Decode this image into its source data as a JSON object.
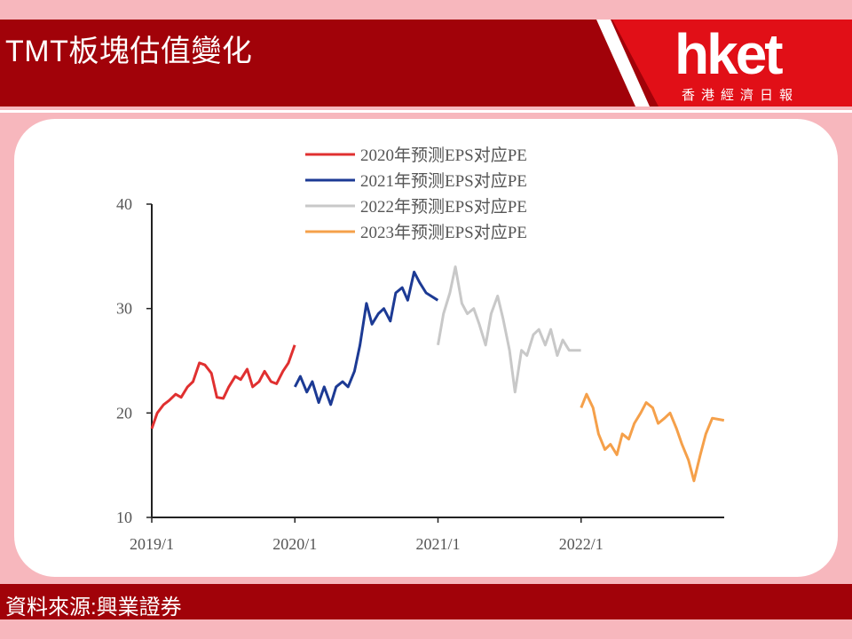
{
  "header": {
    "title": "TMT板塊估值變化",
    "logo": "hket",
    "logo_sub": "香港經濟日報"
  },
  "footer": {
    "source": "資料來源:興業證券"
  },
  "colors": {
    "header_bg": "#a10209",
    "logo_bg": "#e10f17",
    "page_bg": "#f7b7bd"
  },
  "chart_data": {
    "type": "line",
    "title": "",
    "xlabel": "",
    "ylabel": "",
    "xlim": [
      "2019/1",
      "2023/1"
    ],
    "ylim": [
      10,
      40
    ],
    "x_ticks": [
      "2019/1",
      "2020/1",
      "2021/1",
      "2022/1"
    ],
    "y_ticks": [
      10,
      20,
      30,
      40
    ],
    "grid": false,
    "legend_position": "top-center",
    "series": [
      {
        "name": "2020年预测EPS对应PE",
        "color": "#e03030",
        "points": [
          [
            "2019-01",
            18.5
          ],
          [
            "2019-01-15",
            20.0
          ],
          [
            "2019-02",
            20.8
          ],
          [
            "2019-02-15",
            21.2
          ],
          [
            "2019-03",
            21.8
          ],
          [
            "2019-03-15",
            21.5
          ],
          [
            "2019-04",
            22.5
          ],
          [
            "2019-04-15",
            23.0
          ],
          [
            "2019-05",
            24.8
          ],
          [
            "2019-05-15",
            24.6
          ],
          [
            "2019-06",
            23.8
          ],
          [
            "2019-06-15",
            21.5
          ],
          [
            "2019-07",
            21.4
          ],
          [
            "2019-07-15",
            22.5
          ],
          [
            "2019-08",
            23.5
          ],
          [
            "2019-08-15",
            23.2
          ],
          [
            "2019-09",
            24.2
          ],
          [
            "2019-09-15",
            22.5
          ],
          [
            "2019-10",
            23.0
          ],
          [
            "2019-10-15",
            24.0
          ],
          [
            "2019-11",
            23.0
          ],
          [
            "2019-11-15",
            22.8
          ],
          [
            "2019-12",
            24.0
          ],
          [
            "2019-12-15",
            24.8
          ],
          [
            "2019-12-31",
            26.5
          ]
        ]
      },
      {
        "name": "2021年预测EPS对应PE",
        "color": "#1c3a94",
        "points": [
          [
            "2020-01",
            22.5
          ],
          [
            "2020-01-15",
            23.5
          ],
          [
            "2020-02",
            22.0
          ],
          [
            "2020-02-15",
            23.0
          ],
          [
            "2020-03",
            21.0
          ],
          [
            "2020-03-15",
            22.5
          ],
          [
            "2020-04",
            20.8
          ],
          [
            "2020-04-15",
            22.5
          ],
          [
            "2020-05",
            23.0
          ],
          [
            "2020-05-15",
            22.5
          ],
          [
            "2020-06",
            24.0
          ],
          [
            "2020-06-15",
            26.5
          ],
          [
            "2020-07",
            30.5
          ],
          [
            "2020-07-15",
            28.5
          ],
          [
            "2020-08",
            29.5
          ],
          [
            "2020-08-15",
            30.0
          ],
          [
            "2020-09",
            28.8
          ],
          [
            "2020-09-15",
            31.5
          ],
          [
            "2020-10",
            32.0
          ],
          [
            "2020-10-15",
            30.8
          ],
          [
            "2020-11",
            33.5
          ],
          [
            "2020-11-15",
            32.5
          ],
          [
            "2020-12",
            31.5
          ],
          [
            "2020-12-31",
            30.8
          ]
        ]
      },
      {
        "name": "2022年预测EPS对应PE",
        "color": "#c8c8c8",
        "points": [
          [
            "2021-01",
            26.5
          ],
          [
            "2021-01-15",
            29.5
          ],
          [
            "2021-02",
            31.5
          ],
          [
            "2021-02-15",
            34.0
          ],
          [
            "2021-03",
            30.5
          ],
          [
            "2021-03-15",
            29.5
          ],
          [
            "2021-04",
            30.0
          ],
          [
            "2021-04-15",
            28.5
          ],
          [
            "2021-05",
            26.5
          ],
          [
            "2021-05-15",
            29.5
          ],
          [
            "2021-06",
            31.2
          ],
          [
            "2021-06-15",
            29.0
          ],
          [
            "2021-07",
            26.0
          ],
          [
            "2021-07-15",
            22.0
          ],
          [
            "2021-08",
            26.0
          ],
          [
            "2021-08-15",
            25.5
          ],
          [
            "2021-09",
            27.5
          ],
          [
            "2021-09-15",
            28.0
          ],
          [
            "2021-10",
            26.5
          ],
          [
            "2021-10-15",
            28.0
          ],
          [
            "2021-11",
            25.5
          ],
          [
            "2021-11-15",
            27.0
          ],
          [
            "2021-12",
            26.0
          ],
          [
            "2021-12-31",
            26.0
          ]
        ]
      },
      {
        "name": "2023年预测EPS对应PE",
        "color": "#f5a04a",
        "points": [
          [
            "2022-01",
            20.5
          ],
          [
            "2022-01-15",
            21.8
          ],
          [
            "2022-02",
            20.5
          ],
          [
            "2022-02-15",
            18.0
          ],
          [
            "2022-03",
            16.5
          ],
          [
            "2022-03-15",
            17.0
          ],
          [
            "2022-04",
            16.0
          ],
          [
            "2022-04-15",
            18.0
          ],
          [
            "2022-05",
            17.5
          ],
          [
            "2022-05-15",
            19.0
          ],
          [
            "2022-06",
            20.0
          ],
          [
            "2022-06-15",
            21.0
          ],
          [
            "2022-07",
            20.5
          ],
          [
            "2022-07-15",
            19.0
          ],
          [
            "2022-08",
            19.5
          ],
          [
            "2022-08-15",
            20.0
          ],
          [
            "2022-09",
            18.5
          ],
          [
            "2022-09-15",
            17.0
          ],
          [
            "2022-10",
            15.5
          ],
          [
            "2022-10-15",
            13.5
          ],
          [
            "2022-11",
            16.0
          ],
          [
            "2022-11-15",
            18.0
          ],
          [
            "2022-12",
            19.5
          ],
          [
            "2022-12-31",
            19.3
          ]
        ]
      }
    ]
  }
}
